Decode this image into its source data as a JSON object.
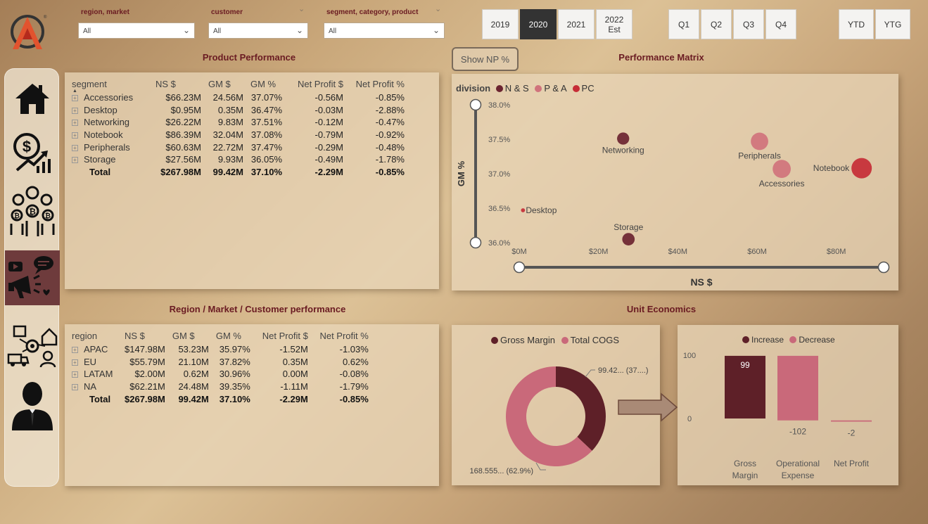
{
  "filters": {
    "region": {
      "label": "region, market",
      "value": "All"
    },
    "customer": {
      "label": "customer",
      "value": "All"
    },
    "segment": {
      "label": "segment, category, product",
      "value": "All"
    }
  },
  "years": {
    "y2019": "2019",
    "y2020": "2020",
    "y2021": "2021",
    "y2022_line1": "2022",
    "y2022_line2": "Est",
    "selected": "2020"
  },
  "quarters": {
    "q1": "Q1",
    "q2": "Q2",
    "q3": "Q3",
    "q4": "Q4"
  },
  "periods": {
    "ytd": "YTD",
    "ytg": "YTG"
  },
  "show_np_button": "Show NP %",
  "nav": {
    "items": [
      "home-icon",
      "finance-icon",
      "customers-icon",
      "marketing-icon",
      "supply-chain-icon",
      "executive-icon"
    ],
    "active": "marketing-icon"
  },
  "product_performance": {
    "title": "Product Performance",
    "headers": {
      "dim": "segment",
      "ns": "NS $",
      "gm": "GM $",
      "gmp": "GM %",
      "np": "Net Profit $",
      "npp": "Net Profit %"
    },
    "rows": [
      {
        "name": "Accessories",
        "ns": "$66.23M",
        "gm": "24.56M",
        "gmp": "37.07%",
        "np": "-0.56M",
        "npp": "-0.85%"
      },
      {
        "name": "Desktop",
        "ns": "$0.95M",
        "gm": "0.35M",
        "gmp": "36.47%",
        "np": "-0.03M",
        "npp": "-2.88%"
      },
      {
        "name": "Networking",
        "ns": "$26.22M",
        "gm": "9.83M",
        "gmp": "37.51%",
        "np": "-0.12M",
        "npp": "-0.47%"
      },
      {
        "name": "Notebook",
        "ns": "$86.39M",
        "gm": "32.04M",
        "gmp": "37.08%",
        "np": "-0.79M",
        "npp": "-0.92%"
      },
      {
        "name": "Peripherals",
        "ns": "$60.63M",
        "gm": "22.72M",
        "gmp": "37.47%",
        "np": "-0.29M",
        "npp": "-0.48%"
      },
      {
        "name": "Storage",
        "ns": "$27.56M",
        "gm": "9.93M",
        "gmp": "36.05%",
        "np": "-0.49M",
        "npp": "-1.78%"
      }
    ],
    "total": {
      "name": "Total",
      "ns": "$267.98M",
      "gm": "99.42M",
      "gmp": "37.10%",
      "np": "-2.29M",
      "npp": "-0.85%"
    }
  },
  "region_performance": {
    "title": "Region / Market / Customer performance",
    "headers": {
      "dim": "region",
      "ns": "NS $",
      "gm": "GM $",
      "gmp": "GM %",
      "np": "Net Profit $",
      "npp": "Net Profit %"
    },
    "rows": [
      {
        "name": "APAC",
        "ns": "$147.98M",
        "gm": "53.23M",
        "gmp": "35.97%",
        "np": "-1.52M",
        "npp": "-1.03%"
      },
      {
        "name": "EU",
        "ns": "$55.79M",
        "gm": "21.10M",
        "gmp": "37.82%",
        "np": "0.35M",
        "npp": "0.62%"
      },
      {
        "name": "LATAM",
        "ns": "$2.00M",
        "gm": "0.62M",
        "gmp": "30.96%",
        "np": "0.00M",
        "npp": "-0.08%"
      },
      {
        "name": "NA",
        "ns": "$62.21M",
        "gm": "24.48M",
        "gmp": "39.35%",
        "np": "-1.11M",
        "npp": "-1.79%"
      }
    ],
    "total": {
      "name": "Total",
      "ns": "$267.98M",
      "gm": "99.42M",
      "gmp": "37.10%",
      "np": "-2.29M",
      "npp": "-0.85%"
    }
  },
  "colors": {
    "ns": "#6b2430",
    "pa": "#d0737c",
    "pc": "#c62c36",
    "gross_margin": "#5e2028",
    "total_cogs": "#c9697a",
    "title": "#6a1b22"
  },
  "chart_data": [
    {
      "type": "scatter",
      "title": "Performance Matrix",
      "xlabel": "NS $",
      "ylabel": "GM %",
      "legend_title": "division",
      "legend": [
        "N & S",
        "P & A",
        "PC"
      ],
      "xlim": [
        0,
        90
      ],
      "ylim": [
        36.0,
        38.0
      ],
      "x_ticks": [
        "$0M",
        "$20M",
        "$40M",
        "$60M",
        "$80M"
      ],
      "x_tick_values": [
        0,
        20,
        40,
        60,
        80
      ],
      "y_ticks": [
        "38.0%",
        "37.5%",
        "37.0%",
        "36.5%",
        "36.0%"
      ],
      "y_tick_values": [
        38.0,
        37.5,
        37.0,
        36.5,
        36.0
      ],
      "points": [
        {
          "label": "Networking",
          "x": 26.22,
          "y": 37.51,
          "division": "N & S",
          "size": 26.22
        },
        {
          "label": "Storage",
          "x": 27.56,
          "y": 36.05,
          "division": "N & S",
          "size": 27.56
        },
        {
          "label": "Desktop",
          "x": 0.95,
          "y": 36.47,
          "division": "PC",
          "size": 0.95
        },
        {
          "label": "Peripherals",
          "x": 60.63,
          "y": 37.47,
          "division": "P & A",
          "size": 60.63
        },
        {
          "label": "Accessories",
          "x": 66.23,
          "y": 37.07,
          "division": "P & A",
          "size": 66.23
        },
        {
          "label": "Notebook",
          "x": 86.39,
          "y": 37.08,
          "division": "PC",
          "size": 86.39
        }
      ]
    },
    {
      "type": "pie",
      "title": "Unit Economics",
      "donut": true,
      "legend": [
        "Gross Margin",
        "Total COGS"
      ],
      "slices": [
        {
          "name": "Gross Margin",
          "value": 99.42,
          "pct": 37.1,
          "label": "99.42... (37....)"
        },
        {
          "name": "Total COGS",
          "value": 168.555,
          "pct": 62.9,
          "label": "168.555... (62.9%)"
        }
      ]
    },
    {
      "type": "bar",
      "subtype": "waterfall",
      "legend": [
        "Increase",
        "Decrease"
      ],
      "categories": [
        "Gross Margin",
        "Operational Expense",
        "Net Profit"
      ],
      "category_lines": [
        [
          "Gross",
          "Margin"
        ],
        [
          "Operational",
          "Expense"
        ],
        [
          "Net Profit"
        ]
      ],
      "values": [
        99,
        -102,
        -2
      ],
      "data_labels": [
        "99",
        "-102",
        "-2"
      ],
      "y_ticks": [
        "100",
        "0"
      ],
      "y_tick_values": [
        100,
        0
      ],
      "ylim": [
        -5,
        100
      ]
    }
  ]
}
